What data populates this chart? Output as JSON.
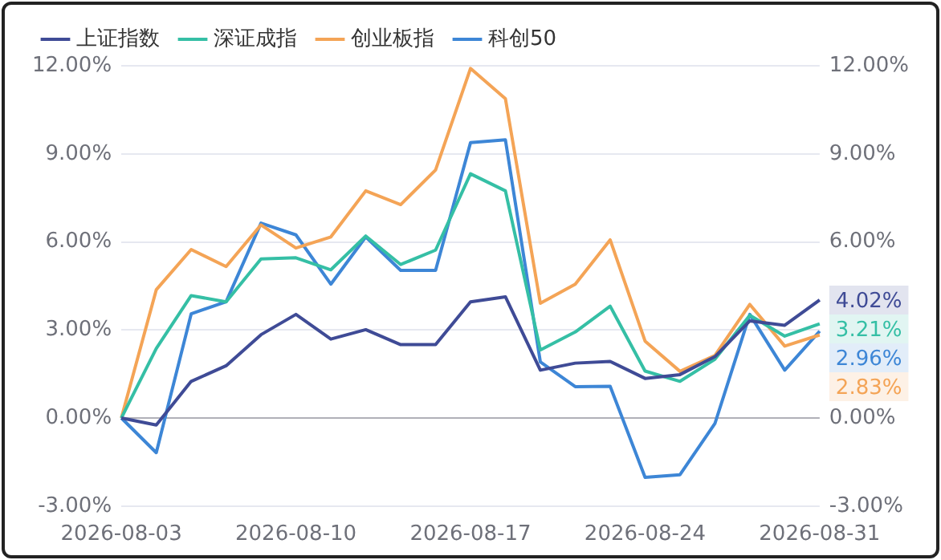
{
  "chart_data": {
    "type": "line",
    "categories": [
      "2026-08-03",
      null,
      null,
      null,
      null,
      "2026-08-10",
      null,
      null,
      null,
      null,
      "2026-08-17",
      null,
      null,
      null,
      null,
      "2026-08-24",
      null,
      null,
      null,
      null,
      "2026-08-31"
    ],
    "series": [
      {
        "name": "上证指数",
        "color": "#3f4b96",
        "values": [
          0,
          -0.24,
          1.25,
          1.78,
          2.84,
          3.53,
          2.69,
          3.01,
          2.5,
          2.5,
          3.96,
          4.13,
          1.63,
          1.87,
          1.93,
          1.35,
          1.48,
          2.09,
          3.31,
          3.16,
          4.02
        ],
        "value_labels": [
          null,
          null,
          null,
          null,
          null,
          null,
          null,
          null,
          null,
          null,
          null,
          null,
          null,
          null,
          null,
          null,
          null,
          null,
          null,
          null,
          "4.02%"
        ]
      },
      {
        "name": "深证成指",
        "color": "#35bfa5",
        "values": [
          0,
          2.37,
          4.17,
          3.96,
          5.42,
          5.46,
          5.05,
          6.2,
          5.23,
          5.72,
          8.32,
          7.74,
          2.32,
          2.93,
          3.81,
          1.6,
          1.25,
          2.0,
          3.5,
          2.79,
          3.21
        ],
        "value_labels": [
          null,
          null,
          null,
          null,
          null,
          null,
          null,
          null,
          null,
          null,
          null,
          null,
          null,
          null,
          null,
          null,
          null,
          null,
          null,
          null,
          "3.21%"
        ]
      },
      {
        "name": "创业板指",
        "color": "#f4a456",
        "values": [
          0,
          4.37,
          5.74,
          5.16,
          6.58,
          5.79,
          6.17,
          7.74,
          7.27,
          8.45,
          11.91,
          10.88,
          3.91,
          4.56,
          6.07,
          2.62,
          1.59,
          2.13,
          3.87,
          2.45,
          2.83
        ],
        "value_labels": [
          null,
          null,
          null,
          null,
          null,
          null,
          null,
          null,
          null,
          null,
          null,
          null,
          null,
          null,
          null,
          null,
          null,
          null,
          null,
          null,
          "2.83%"
        ]
      },
      {
        "name": "科创50",
        "color": "#3d86d6",
        "values": [
          0,
          -1.18,
          3.55,
          3.96,
          6.64,
          6.24,
          4.56,
          6.17,
          5.03,
          5.03,
          9.38,
          9.48,
          1.91,
          1.07,
          1.08,
          -2.02,
          -1.93,
          -0.19,
          3.53,
          1.63,
          2.96
        ],
        "value_labels": [
          null,
          null,
          null,
          null,
          null,
          null,
          null,
          null,
          null,
          null,
          null,
          null,
          null,
          null,
          null,
          null,
          null,
          null,
          null,
          null,
          "2.96%"
        ]
      }
    ],
    "ylim": [
      -3,
      12
    ],
    "yticks": [
      {
        "value": -3,
        "label": "-3.00%"
      },
      {
        "value": 0,
        "label": "0.00%"
      },
      {
        "value": 3,
        "label": "3.00%"
      },
      {
        "value": 6,
        "label": "6.00%"
      },
      {
        "value": 9,
        "label": "9.00%"
      },
      {
        "value": 12,
        "label": "12.00%"
      }
    ],
    "y2lim": [
      -3,
      12
    ],
    "y2ticks": [
      {
        "value": -3,
        "label": "-3.00%"
      },
      {
        "value": 0,
        "label": "0.00%"
      },
      {
        "value": 3,
        "label": null
      },
      {
        "value": 6,
        "label": "6.00%"
      },
      {
        "value": 9,
        "label": "9.00%"
      },
      {
        "value": 12,
        "label": "12.00%"
      }
    ],
    "grid": "y",
    "legend": "top left",
    "marker": "none",
    "line_style": "solid"
  }
}
